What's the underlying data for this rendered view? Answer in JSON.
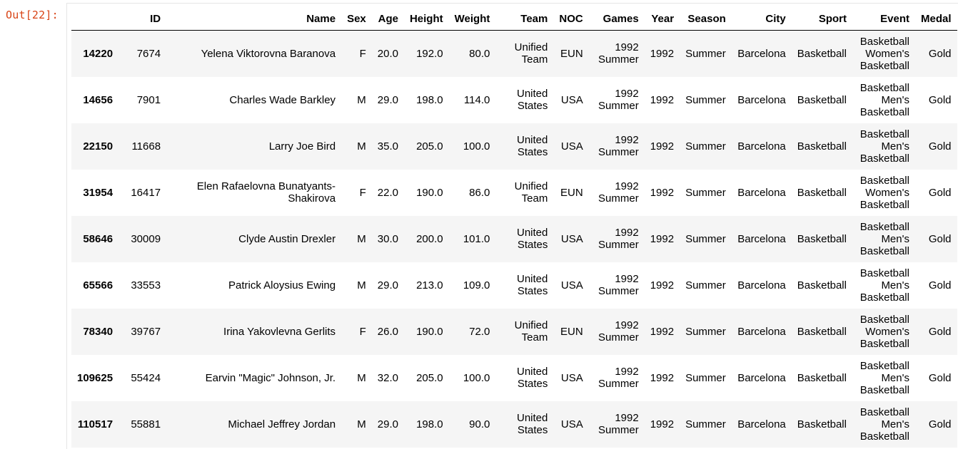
{
  "prompt": "Out[22]:",
  "table": {
    "columns": [
      "",
      "ID",
      "Name",
      "Sex",
      "Age",
      "Height",
      "Weight",
      "Team",
      "NOC",
      "Games",
      "Year",
      "Season",
      "City",
      "Sport",
      "Event",
      "Medal"
    ],
    "rows": [
      {
        "index": "14220",
        "cells": [
          "7674",
          "Yelena Viktorovna Baranova",
          "F",
          "20.0",
          "192.0",
          "80.0",
          "Unified Team",
          "EUN",
          "1992 Summer",
          "1992",
          "Summer",
          "Barcelona",
          "Basketball",
          "Basketball Women's Basketball",
          "Gold"
        ]
      },
      {
        "index": "14656",
        "cells": [
          "7901",
          "Charles Wade Barkley",
          "M",
          "29.0",
          "198.0",
          "114.0",
          "United States",
          "USA",
          "1992 Summer",
          "1992",
          "Summer",
          "Barcelona",
          "Basketball",
          "Basketball Men's Basketball",
          "Gold"
        ]
      },
      {
        "index": "22150",
        "cells": [
          "11668",
          "Larry Joe Bird",
          "M",
          "35.0",
          "205.0",
          "100.0",
          "United States",
          "USA",
          "1992 Summer",
          "1992",
          "Summer",
          "Barcelona",
          "Basketball",
          "Basketball Men's Basketball",
          "Gold"
        ]
      },
      {
        "index": "31954",
        "cells": [
          "16417",
          "Elen Rafaelovna Bunatyants-Shakirova",
          "F",
          "22.0",
          "190.0",
          "86.0",
          "Unified Team",
          "EUN",
          "1992 Summer",
          "1992",
          "Summer",
          "Barcelona",
          "Basketball",
          "Basketball Women's Basketball",
          "Gold"
        ]
      },
      {
        "index": "58646",
        "cells": [
          "30009",
          "Clyde Austin Drexler",
          "M",
          "30.0",
          "200.0",
          "101.0",
          "United States",
          "USA",
          "1992 Summer",
          "1992",
          "Summer",
          "Barcelona",
          "Basketball",
          "Basketball Men's Basketball",
          "Gold"
        ]
      },
      {
        "index": "65566",
        "cells": [
          "33553",
          "Patrick Aloysius Ewing",
          "M",
          "29.0",
          "213.0",
          "109.0",
          "United States",
          "USA",
          "1992 Summer",
          "1992",
          "Summer",
          "Barcelona",
          "Basketball",
          "Basketball Men's Basketball",
          "Gold"
        ]
      },
      {
        "index": "78340",
        "cells": [
          "39767",
          "Irina Yakovlevna Gerlits",
          "F",
          "26.0",
          "190.0",
          "72.0",
          "Unified Team",
          "EUN",
          "1992 Summer",
          "1992",
          "Summer",
          "Barcelona",
          "Basketball",
          "Basketball Women's Basketball",
          "Gold"
        ]
      },
      {
        "index": "109625",
        "cells": [
          "55424",
          "Earvin \"Magic\" Johnson, Jr.",
          "M",
          "32.0",
          "205.0",
          "100.0",
          "United States",
          "USA",
          "1992 Summer",
          "1992",
          "Summer",
          "Barcelona",
          "Basketball",
          "Basketball Men's Basketball",
          "Gold"
        ]
      },
      {
        "index": "110517",
        "cells": [
          "55881",
          "Michael Jeffrey Jordan",
          "M",
          "29.0",
          "198.0",
          "90.0",
          "United States",
          "USA",
          "1992 Summer",
          "1992",
          "Summer",
          "Barcelona",
          "Basketball",
          "Basketball Men's Basketball",
          "Gold"
        ]
      }
    ]
  },
  "colors": {
    "prompt": "#d84315",
    "row_stripe": "#f5f5f5",
    "text": "#000000"
  }
}
